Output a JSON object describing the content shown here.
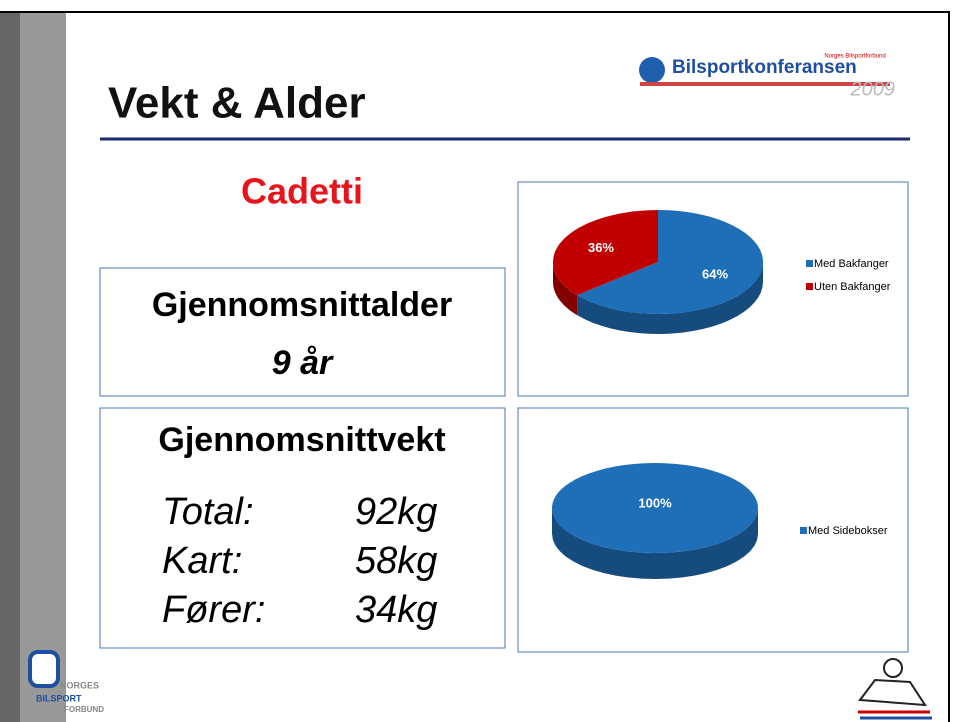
{
  "slide": {
    "title": "Vekt & Alder",
    "logo": {
      "small": "Norges Bilsportforbund",
      "name": "Bilsportkonferansen",
      "year": "2009"
    },
    "subtitle": "Cadetti",
    "age_box": {
      "heading": "Gjennomsnittalder",
      "value": "9 år"
    },
    "weight_box": {
      "heading": "Gjennomsnittvekt",
      "rows": [
        [
          "Total:",
          "92kg"
        ],
        [
          "Kart:",
          "58kg"
        ],
        [
          "Fører:",
          "34kg"
        ]
      ]
    },
    "footer_logo": [
      "NORGES",
      "BILSPORT",
      "FORBUND"
    ]
  },
  "chart_data": [
    {
      "type": "pie",
      "categories": [
        "Med Bakfanger",
        "Uten Bakfanger"
      ],
      "values": [
        64,
        36
      ],
      "value_labels": [
        "64%",
        "36%"
      ],
      "colors": [
        "#1f6fb8",
        "#c00000"
      ]
    },
    {
      "type": "pie",
      "categories": [
        "Med Sidebokser"
      ],
      "values": [
        100
      ],
      "value_labels": [
        "100%"
      ],
      "colors": [
        "#1f6fb8"
      ]
    }
  ]
}
